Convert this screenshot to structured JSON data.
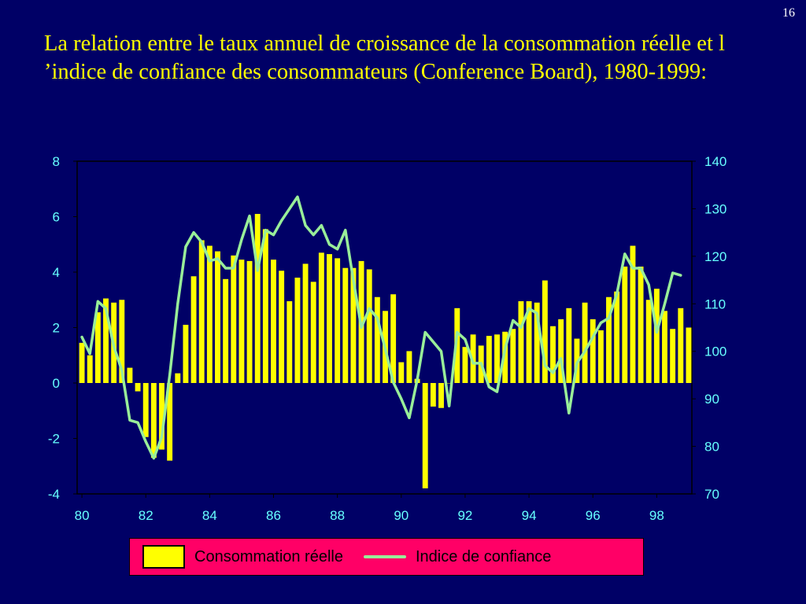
{
  "slide": {
    "number": "16",
    "title": "La relation entre le taux annuel de croissance de la consommation réelle et l ’indice de confiance des consommateurs (Conference Board), 1980-1999:"
  },
  "colors": {
    "background": "#000066",
    "title": "#ffff00",
    "bars": "#ffff00",
    "line": "#99ee99",
    "axis_text": "#66ffff",
    "legend_bg": "#ff0066"
  },
  "legend": {
    "bar_label": "Consommation réelle",
    "line_label": "Indice de confiance"
  },
  "chart_data": {
    "type": "bar+line",
    "x_ticks": [
      "80",
      "82",
      "84",
      "86",
      "88",
      "90",
      "92",
      "94",
      "96",
      "98"
    ],
    "y_left": {
      "range": [
        -4,
        8
      ],
      "ticks": [
        "-4",
        "-2",
        "0",
        "2",
        "4",
        "6",
        "8"
      ]
    },
    "y_right": {
      "range": [
        70,
        140
      ],
      "ticks": [
        "70",
        "80",
        "90",
        "100",
        "110",
        "120",
        "130",
        "140"
      ]
    },
    "series": [
      {
        "name": "Consommation réelle",
        "type": "bar",
        "axis": "left",
        "values": [
          1.45,
          1.0,
          2.55,
          3.05,
          2.9,
          3.0,
          0.55,
          -0.3,
          -1.95,
          -2.7,
          -2.4,
          -2.8,
          0.35,
          2.1,
          3.85,
          5.15,
          4.95,
          4.75,
          3.75,
          4.6,
          4.45,
          4.4,
          6.1,
          5.55,
          4.45,
          4.05,
          2.95,
          3.8,
          4.3,
          3.65,
          4.7,
          4.65,
          4.5,
          4.15,
          4.15,
          4.4,
          4.1,
          3.1,
          2.6,
          3.2,
          0.75,
          1.15,
          0.15,
          -3.8,
          -0.85,
          -0.9,
          0.0,
          2.7,
          1.3,
          1.75,
          1.35,
          1.7,
          1.75,
          1.85,
          1.95,
          2.95,
          2.95,
          2.9,
          3.7,
          2.05,
          2.3,
          2.7,
          1.6,
          2.9,
          2.3,
          1.9,
          3.1,
          3.3,
          4.2,
          4.95,
          4.2,
          3.0,
          3.4,
          2.6,
          1.95,
          2.7,
          2.0
        ]
      },
      {
        "name": "Indice de confiance",
        "type": "line",
        "axis": "right",
        "values": [
          103,
          99.5,
          110.5,
          109,
          101,
          96,
          85.5,
          85,
          81,
          77.5,
          82,
          95,
          110,
          122,
          125,
          123,
          119,
          119.5,
          117.5,
          117.5,
          123.5,
          128.5,
          117,
          125.5,
          124.5,
          127.5,
          130,
          132.5,
          126.5,
          124.5,
          126.5,
          122.5,
          121.5,
          125.5,
          115,
          105,
          109,
          107,
          100.5,
          93.5,
          90,
          86,
          94,
          104,
          102,
          100,
          88.5,
          104,
          102.5,
          97.5,
          97.5,
          92.5,
          91.5,
          100.5,
          106.5,
          105,
          109,
          108,
          97,
          95.5,
          98.5,
          87,
          97.5,
          100,
          103,
          106,
          107,
          112,
          120.5,
          117.5,
          117.5,
          114,
          104,
          110,
          116.5,
          116
        ]
      }
    ]
  }
}
